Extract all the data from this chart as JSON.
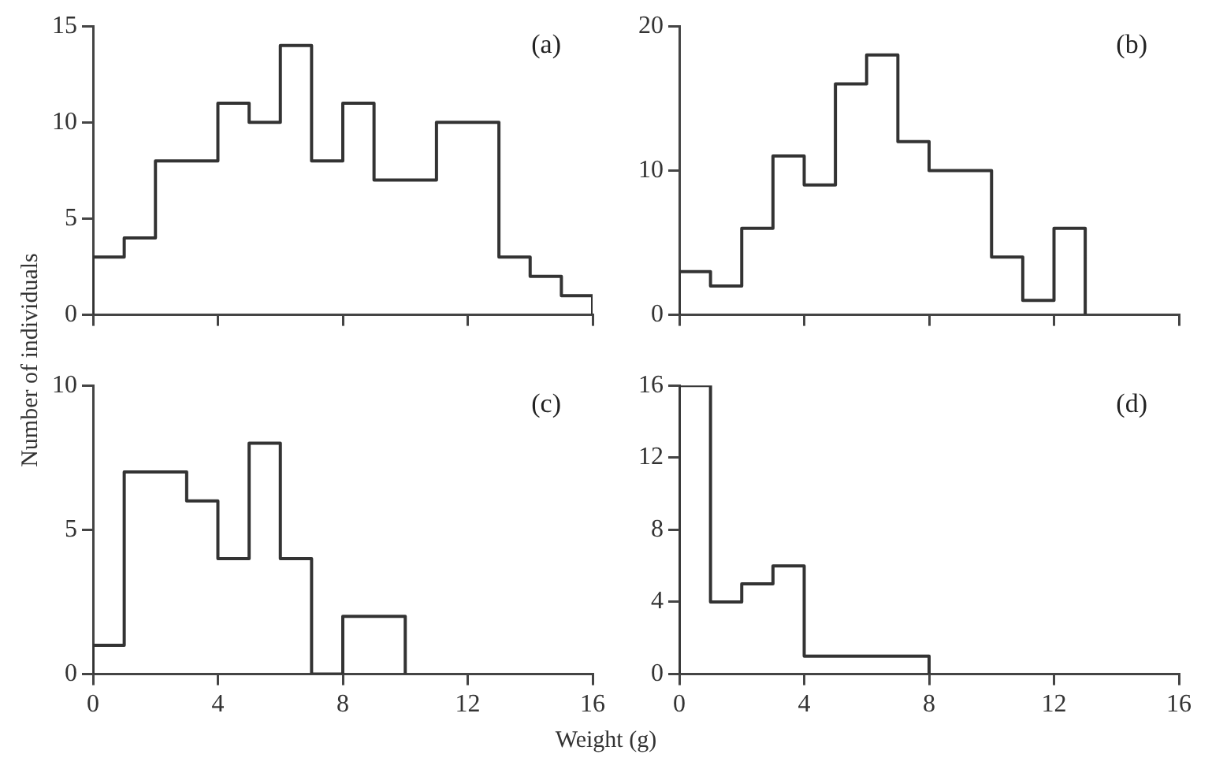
{
  "chart_data": [
    {
      "type": "histogram",
      "title": "(a)",
      "ylabel": "Number of individuals",
      "color": "#333333",
      "bins": [
        0,
        1,
        2,
        4,
        5,
        6,
        7,
        8,
        9,
        11,
        13,
        14,
        15,
        16
      ],
      "values": [
        3,
        4,
        8,
        11,
        10,
        14,
        8,
        11,
        7,
        10,
        3,
        2,
        1
      ],
      "xlim": [
        0,
        16
      ],
      "xticks": [
        {
          "value": 0,
          "label": null
        },
        {
          "value": 4,
          "label": null
        },
        {
          "value": 8,
          "label": null
        },
        {
          "value": 12,
          "label": null
        },
        {
          "value": 16,
          "label": null
        }
      ],
      "ylim": [
        0,
        15
      ],
      "yticks": [
        0,
        5,
        10,
        15
      ],
      "tick_labels": "y"
    },
    {
      "type": "histogram",
      "title": "(b)",
      "color": "#333333",
      "bins": [
        0,
        1,
        2,
        3,
        4,
        5,
        6,
        7,
        8,
        10,
        11,
        12,
        13
      ],
      "values": [
        3,
        2,
        6,
        11,
        9,
        16,
        18,
        12,
        10,
        4,
        1,
        6
      ],
      "xlim": [
        0,
        16
      ],
      "xticks": [
        {
          "value": 0,
          "label": null
        },
        {
          "value": 4,
          "label": null
        },
        {
          "value": 8,
          "label": null
        },
        {
          "value": 12,
          "label": null
        },
        {
          "value": 16,
          "label": null
        }
      ],
      "ylim": [
        0,
        20
      ],
      "yticks": [
        0,
        10,
        20
      ],
      "tick_labels": "y"
    },
    {
      "type": "histogram",
      "title": "(c)",
      "xlabel": "Weight (g)",
      "color": "#333333",
      "bins": [
        0,
        1,
        3,
        4,
        5,
        6,
        7,
        8,
        10
      ],
      "values": [
        1,
        7,
        6,
        4,
        8,
        4,
        0,
        2
      ],
      "xlim": [
        0,
        16
      ],
      "xticks": [
        0,
        4,
        8,
        12,
        16
      ],
      "ylim": [
        0,
        10
      ],
      "yticks": [
        0,
        5,
        10
      ]
    },
    {
      "type": "histogram",
      "title": "(d)",
      "color": "#333333",
      "bins": [
        0,
        1,
        2,
        3,
        4,
        8
      ],
      "values": [
        16,
        4,
        5,
        6,
        1
      ],
      "xlim": [
        0,
        16
      ],
      "xticks": [
        0,
        4,
        8,
        12,
        16
      ],
      "ylim": [
        0,
        16
      ],
      "yticks": [
        0,
        4,
        8,
        12,
        16
      ]
    }
  ]
}
